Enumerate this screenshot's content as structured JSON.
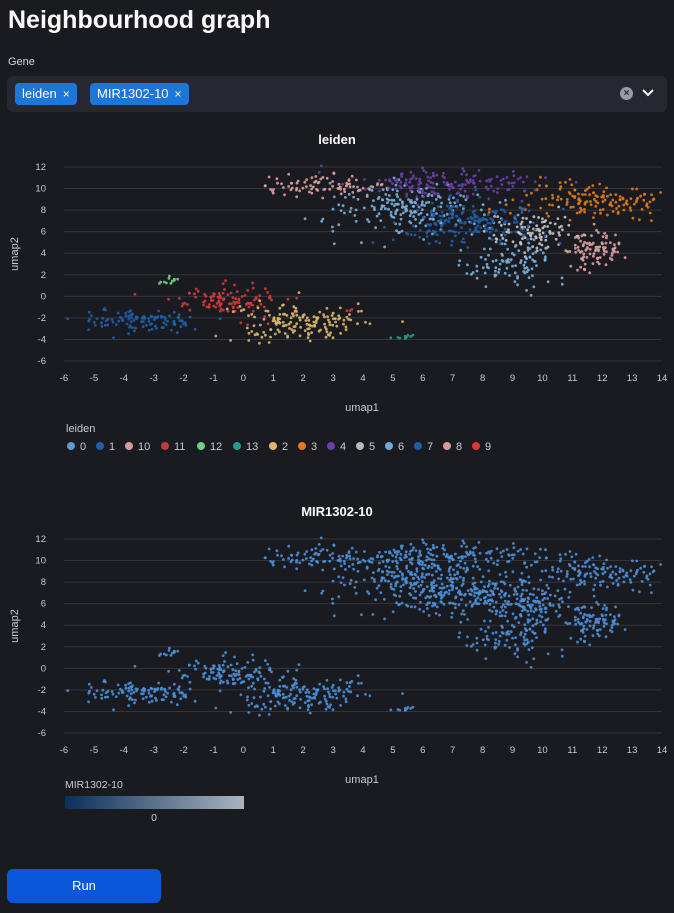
{
  "page": {
    "title": "Neighbourhood graph"
  },
  "gene_select": {
    "label": "Gene",
    "chips": [
      {
        "label": "leiden",
        "remove": "×"
      },
      {
        "label": "MIR1302-10",
        "remove": "×"
      }
    ],
    "clear_icon": "clear-circle-icon",
    "dropdown_icon": "chevron-down-icon"
  },
  "run_button": {
    "label": "Run"
  },
  "colors": {
    "accent": "#1e77d6",
    "button": "#0b57d9",
    "background": "#1a1b20"
  },
  "chart_data": [
    {
      "type": "scatter",
      "title": "leiden",
      "xlabel": "umap1",
      "ylabel": "umap2",
      "xlim": [
        -6,
        14
      ],
      "ylim": [
        -6,
        12
      ],
      "xticks": [
        -6,
        -5,
        -4,
        -3,
        -2,
        -1,
        0,
        1,
        2,
        3,
        4,
        5,
        6,
        7,
        8,
        9,
        10,
        11,
        12,
        13,
        14
      ],
      "yticks": [
        12,
        10,
        8,
        6,
        4,
        2,
        0,
        -2,
        -4,
        -6
      ],
      "legend": {
        "title": "leiden",
        "placement": "bottom",
        "entries": [
          {
            "label": "0",
            "color": "#5b9bd5"
          },
          {
            "label": "1",
            "color": "#1f5fa8"
          },
          {
            "label": "10",
            "color": "#d99a9a"
          },
          {
            "label": "11",
            "color": "#c03b3b"
          },
          {
            "label": "12",
            "color": "#6fcf7f"
          },
          {
            "label": "13",
            "color": "#1f9e8a"
          },
          {
            "label": "2",
            "color": "#d9b86a"
          },
          {
            "label": "3",
            "color": "#e07b1a"
          },
          {
            "label": "4",
            "color": "#6a3fa8"
          },
          {
            "label": "5",
            "color": "#b8b8b8"
          },
          {
            "label": "6",
            "color": "#6fa8dc"
          },
          {
            "label": "7",
            "color": "#1f5fa8"
          },
          {
            "label": "8",
            "color": "#d99a9a"
          },
          {
            "label": "9",
            "color": "#d63b3b"
          }
        ]
      },
      "clusters": [
        {
          "cluster": "0",
          "color": "#79b0e0",
          "cx": 5.5,
          "cy": 8.3,
          "sx": 1.3,
          "sy": 1.2,
          "n": 200
        },
        {
          "cluster": "1",
          "color": "#1f5fa8",
          "cx": -3.5,
          "cy": -2.3,
          "sx": 1.0,
          "sy": 0.5,
          "n": 110
        },
        {
          "cluster": "10",
          "color": "#e0a0a0",
          "cx": 2.5,
          "cy": 10.2,
          "sx": 1.0,
          "sy": 0.5,
          "n": 80
        },
        {
          "cluster": "11",
          "color": "#d03b3b",
          "cx": -0.5,
          "cy": -0.3,
          "sx": 0.9,
          "sy": 0.7,
          "n": 110
        },
        {
          "cluster": "12",
          "color": "#6fcf7f",
          "cx": -2.5,
          "cy": 1.5,
          "sx": 0.2,
          "sy": 0.2,
          "n": 12
        },
        {
          "cluster": "13",
          "color": "#1f9e8a",
          "cx": 5.3,
          "cy": -3.8,
          "sx": 0.2,
          "sy": 0.08,
          "n": 10
        },
        {
          "cluster": "2",
          "color": "#d9b86a",
          "cx": 1.8,
          "cy": -2.3,
          "sx": 1.1,
          "sy": 0.9,
          "n": 160
        },
        {
          "cluster": "3",
          "color": "#e07b1a",
          "cx": 11.7,
          "cy": 8.8,
          "sx": 1.3,
          "sy": 0.9,
          "n": 150
        },
        {
          "cluster": "4",
          "color": "#6a3fa8",
          "cx": 6.8,
          "cy": 10.5,
          "sx": 1.5,
          "sy": 0.7,
          "n": 150
        },
        {
          "cluster": "5",
          "color": "#c7c7c7",
          "cx": 9.8,
          "cy": 5.8,
          "sx": 0.8,
          "sy": 0.8,
          "n": 110
        },
        {
          "cluster": "6",
          "color": "#79b0e0",
          "cx": 9.0,
          "cy": 3.0,
          "sx": 0.8,
          "sy": 1.0,
          "n": 100
        },
        {
          "cluster": "7",
          "color": "#1f5fa8",
          "cx": 7.5,
          "cy": 7.0,
          "sx": 1.2,
          "sy": 1.0,
          "n": 180
        },
        {
          "cluster": "8",
          "color": "#e0a0a0",
          "cx": 11.7,
          "cy": 4.3,
          "sx": 0.5,
          "sy": 0.8,
          "n": 90
        },
        {
          "cluster": "9",
          "color": "#d03b3b",
          "cx": 3.6,
          "cy": -1.2,
          "sx": 0.05,
          "sy": 0.1,
          "n": 3
        }
      ]
    },
    {
      "type": "scatter",
      "title": "MIR1302-10",
      "xlabel": "umap1",
      "ylabel": "umap2",
      "xlim": [
        -6,
        14
      ],
      "ylim": [
        -6,
        12
      ],
      "xticks": [
        -6,
        -5,
        -4,
        -3,
        -2,
        -1,
        0,
        1,
        2,
        3,
        4,
        5,
        6,
        7,
        8,
        9,
        10,
        11,
        12,
        13,
        14
      ],
      "yticks": [
        12,
        10,
        8,
        6,
        4,
        2,
        0,
        -2,
        -4,
        -6
      ],
      "point_color": "#4a90d9",
      "colorbar": {
        "title": "MIR1302-10",
        "tick": "0",
        "from": "#0b2f5a",
        "to": "#a9b4c0"
      }
    }
  ]
}
